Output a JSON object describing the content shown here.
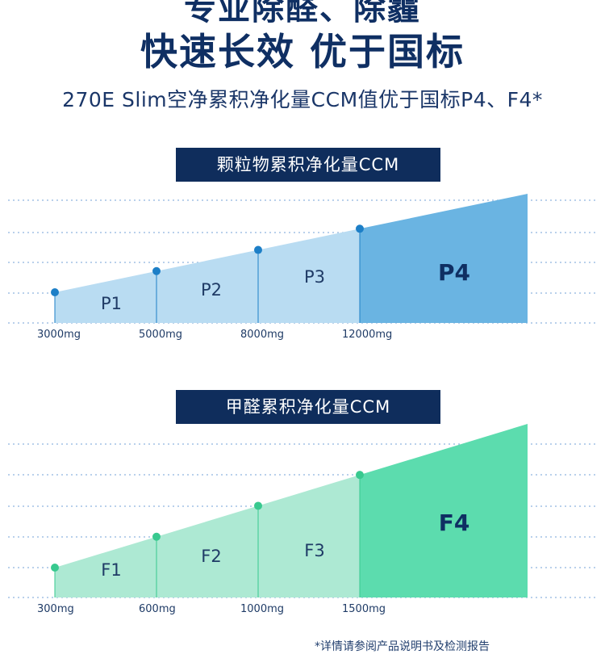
{
  "headline": {
    "top_line": "专业除醛、除霾",
    "title": "快速长效 优于国标",
    "subtitle": "270E Slim空净累积净化量CCM值优于国标P4、F4*"
  },
  "footer": {
    "note": "*详情请参阅产品说明书及检测报告"
  },
  "chart_data": [
    {
      "type": "area",
      "title": "颗粒物累积净化量CCM",
      "x": [
        "3000mg",
        "5000mg",
        "8000mg",
        "12000mg"
      ],
      "zones": [
        "P1",
        "P2",
        "P3",
        "P4"
      ],
      "highlight": "P4",
      "grid": true,
      "colors": {
        "light": "#b9dcf2",
        "dark": "#6ab4e2",
        "marker": "#1d7fc7",
        "grid": "#8fb4df"
      }
    },
    {
      "type": "area",
      "title": "甲醛累积净化量CCM",
      "x": [
        "300mg",
        "600mg",
        "1000mg",
        "1500mg"
      ],
      "zones": [
        "F1",
        "F2",
        "F3",
        "F4"
      ],
      "highlight": "F4",
      "grid": true,
      "colors": {
        "light": "#ade9d3",
        "dark": "#5cdcae",
        "marker": "#38c98f",
        "grid": "#8fb4df"
      }
    }
  ]
}
